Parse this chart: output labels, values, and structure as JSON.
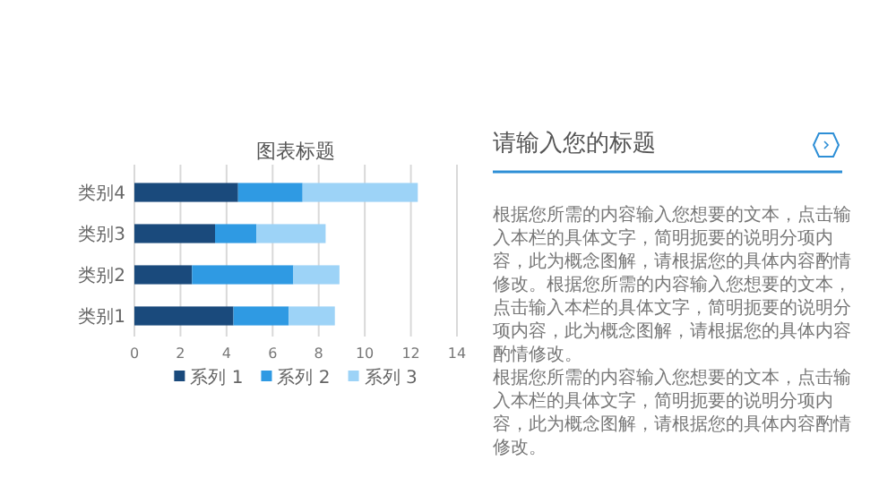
{
  "chart_data": [
    {
      "type": "bar",
      "orientation": "horizontal",
      "stacked": true,
      "title": "图表标题",
      "categories": [
        "类别4",
        "类别3",
        "类别2",
        "类别1"
      ],
      "series": [
        {
          "name": "系列 1",
          "color": "#1a4a7c",
          "values": [
            4.5,
            3.5,
            2.5,
            4.3
          ]
        },
        {
          "name": "系列 2",
          "color": "#2f9ae3",
          "values": [
            2.8,
            1.8,
            4.4,
            2.4
          ]
        },
        {
          "name": "系列 3",
          "color": "#9dd3f7",
          "values": [
            5.0,
            3.0,
            2.0,
            2.0
          ]
        }
      ],
      "xlim": [
        0,
        14
      ],
      "xticks": [
        0,
        2,
        4,
        6,
        8,
        10,
        12,
        14
      ],
      "grid": "x",
      "legend": "bottom"
    },
    {
      "type": "other",
      "title": "请输入您的标题",
      "annotations": [
        "根据您所需的内容输入您想要的文本，点击输入本栏的具体文字，简明扼要的说明分项内容，此为概念图解，请根据您的具体内容酌情修改。根据您所需的内容输入您想要的文本，点击输入本栏的具体文字，简明扼要的说明分项内容，此为概念图解，请根据您的具体内容酌情修改。",
        "根据您所需的内容输入您想要的文本，点击输入本栏的具体文字，简明扼要的说明分项内容，此为概念图解，请根据您的具体内容酌情修改。"
      ]
    }
  ]
}
